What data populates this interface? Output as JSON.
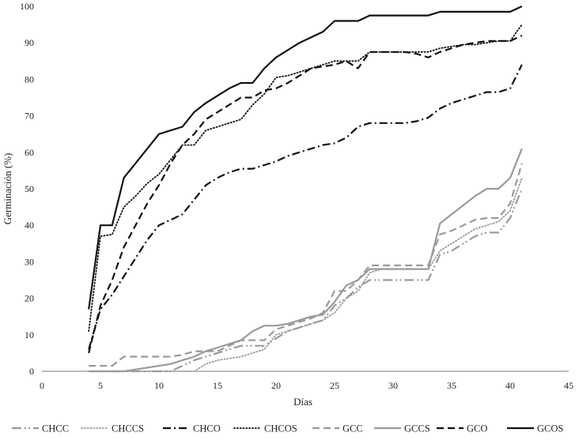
{
  "chart_data": {
    "type": "line",
    "title": "",
    "xlabel": "Días",
    "ylabel": "Germinación (%)",
    "xlim": [
      0,
      45
    ],
    "ylim": [
      0,
      100
    ],
    "xticks": [
      0,
      5,
      10,
      15,
      20,
      25,
      30,
      35,
      40,
      45
    ],
    "yticks": [
      0,
      10,
      20,
      30,
      40,
      50,
      60,
      70,
      80,
      90,
      100
    ],
    "xtick_labels": [
      "0",
      "5",
      "10",
      "15",
      "20",
      "25",
      "30",
      "35",
      "40",
      "45"
    ],
    "ytick_labels": [
      "0",
      "10",
      "20",
      "30",
      "40",
      "50",
      "60",
      "70",
      "80",
      "90",
      "100"
    ],
    "grid": false,
    "legend": "bottom",
    "series": [
      {
        "name": "CHCC",
        "color": "#9a9a9a",
        "style": "dashdotdot",
        "x": [
          4,
          5,
          6,
          7,
          8,
          9,
          10,
          11,
          12,
          13,
          14,
          15,
          16,
          17,
          18,
          19,
          20,
          21,
          22,
          23,
          24,
          25,
          26,
          27,
          28,
          29,
          30,
          31,
          32,
          33,
          34,
          35,
          36,
          37,
          38,
          39,
          40,
          41
        ],
        "y": [
          0,
          0,
          0,
          0,
          0,
          0,
          0,
          0,
          1.5,
          3,
          4,
          5,
          6,
          7,
          7,
          7,
          9,
          11,
          12,
          13,
          14,
          18,
          20,
          23,
          25,
          25,
          25,
          25,
          25,
          25,
          32,
          33,
          35,
          37,
          38,
          38,
          42,
          50
        ]
      },
      {
        "name": "CHCCS",
        "color": "#9a9a9a",
        "style": "dotted",
        "x": [
          4,
          5,
          6,
          7,
          8,
          9,
          10,
          11,
          12,
          13,
          14,
          15,
          16,
          17,
          18,
          19,
          20,
          21,
          22,
          23,
          24,
          25,
          26,
          27,
          28,
          29,
          30,
          31,
          32,
          33,
          34,
          35,
          36,
          37,
          38,
          39,
          40,
          41
        ],
        "y": [
          0,
          0,
          0,
          0,
          0,
          0,
          0,
          0,
          0,
          0,
          2,
          3,
          3.5,
          4,
          5,
          6,
          10,
          11,
          12,
          13,
          14,
          16,
          20,
          22,
          27,
          28,
          28,
          28,
          28,
          28,
          33,
          35,
          37,
          39,
          40,
          41,
          44,
          53
        ]
      },
      {
        "name": "CHCO",
        "color": "#111111",
        "style": "dashdot",
        "x": [
          4,
          5,
          6,
          7,
          8,
          9,
          10,
          11,
          12,
          13,
          14,
          15,
          16,
          17,
          18,
          19,
          20,
          21,
          22,
          23,
          24,
          25,
          26,
          27,
          28,
          29,
          30,
          31,
          32,
          33,
          34,
          35,
          36,
          37,
          38,
          39,
          40,
          41
        ],
        "y": [
          6,
          17,
          21,
          26,
          31,
          36,
          40,
          41.5,
          43,
          47,
          51,
          53,
          54.5,
          55.5,
          55.5,
          56.5,
          57.5,
          59,
          60,
          61,
          62,
          62.5,
          64,
          67,
          68,
          68,
          68,
          68,
          68.5,
          69.5,
          72,
          73.5,
          74.5,
          75.5,
          76.5,
          76.5,
          77.5,
          84
        ]
      },
      {
        "name": "CHCOS",
        "color": "#111111",
        "style": "dotted",
        "x": [
          4,
          5,
          6,
          7,
          8,
          9,
          10,
          11,
          12,
          13,
          14,
          15,
          16,
          17,
          18,
          19,
          20,
          21,
          22,
          23,
          24,
          25,
          26,
          27,
          28,
          29,
          30,
          31,
          32,
          33,
          34,
          35,
          36,
          37,
          38,
          39,
          40,
          41
        ],
        "y": [
          11,
          37,
          37.5,
          45,
          48,
          51.5,
          54,
          58,
          62,
          62,
          66,
          67,
          68,
          69,
          73,
          76,
          80.5,
          81,
          82,
          83,
          84,
          85,
          85,
          85,
          87.5,
          87.5,
          87.5,
          87.5,
          87.5,
          87.5,
          88.5,
          89,
          89.5,
          89.5,
          90,
          90.5,
          90.5,
          95
        ]
      },
      {
        "name": "GCC",
        "color": "#9a9a9a",
        "style": "dashed",
        "x": [
          4,
          5,
          6,
          7,
          8,
          9,
          10,
          11,
          12,
          13,
          14,
          15,
          16,
          17,
          18,
          19,
          20,
          21,
          22,
          23,
          24,
          25,
          26,
          27,
          28,
          29,
          30,
          31,
          32,
          33,
          34,
          35,
          36,
          37,
          38,
          39,
          40,
          41
        ],
        "y": [
          1.5,
          1.5,
          1.5,
          4,
          4,
          4,
          4,
          4,
          4.5,
          5.5,
          5.5,
          5.5,
          7,
          8.5,
          8.5,
          8.5,
          11.5,
          12.5,
          13.5,
          14.5,
          16,
          22,
          22,
          25,
          29,
          29,
          29,
          29,
          29,
          29,
          37.5,
          38.5,
          40,
          41.5,
          42,
          42,
          46,
          57
        ]
      },
      {
        "name": "GCCS",
        "color": "#9a9a9a",
        "style": "solid",
        "x": [
          4,
          5,
          6,
          7,
          8,
          9,
          10,
          11,
          12,
          13,
          14,
          15,
          16,
          17,
          18,
          19,
          20,
          21,
          22,
          23,
          24,
          25,
          26,
          27,
          28,
          29,
          30,
          31,
          32,
          33,
          34,
          35,
          36,
          37,
          38,
          39,
          40,
          41
        ],
        "y": [
          0,
          0,
          0,
          0,
          0.5,
          1,
          1.5,
          2,
          3,
          4,
          5.5,
          6.5,
          7.5,
          8.5,
          11,
          12.5,
          12.5,
          13,
          14,
          15,
          15.5,
          19,
          23.5,
          25,
          28,
          28,
          28,
          28,
          28,
          28,
          40.5,
          43,
          45.5,
          48,
          50,
          50,
          53,
          61
        ]
      },
      {
        "name": "GCO",
        "color": "#111111",
        "style": "dashed",
        "x": [
          4,
          5,
          6,
          7,
          8,
          9,
          10,
          11,
          12,
          13,
          14,
          15,
          16,
          17,
          18,
          19,
          20,
          21,
          22,
          23,
          24,
          25,
          26,
          27,
          28,
          29,
          30,
          31,
          32,
          33,
          34,
          35,
          36,
          37,
          38,
          39,
          40,
          41
        ],
        "y": [
          5,
          18,
          25,
          34,
          40,
          46,
          51,
          57,
          62,
          65,
          69,
          71,
          73,
          75,
          75,
          77,
          77.5,
          79,
          81,
          83,
          83.5,
          84,
          85,
          83,
          87.5,
          87.5,
          87.5,
          87.5,
          87,
          86,
          87.5,
          88.5,
          89.5,
          90,
          90.5,
          90.5,
          90.5,
          92
        ]
      },
      {
        "name": "GCOS",
        "color": "#111111",
        "style": "solid",
        "x": [
          4,
          5,
          6,
          7,
          8,
          9,
          10,
          11,
          12,
          13,
          14,
          15,
          16,
          17,
          18,
          19,
          20,
          21,
          22,
          23,
          24,
          25,
          26,
          27,
          28,
          29,
          30,
          31,
          32,
          33,
          34,
          35,
          36,
          37,
          38,
          39,
          40,
          41
        ],
        "y": [
          17,
          40,
          40,
          53,
          57,
          61,
          65,
          66,
          67,
          71,
          73.5,
          75.5,
          77.5,
          79,
          79,
          83,
          86,
          88,
          90,
          91.5,
          93,
          96,
          96,
          96,
          97.5,
          97.5,
          97.5,
          97.5,
          97.5,
          97.5,
          98.5,
          98.5,
          98.5,
          98.5,
          98.5,
          98.5,
          98.5,
          100
        ]
      }
    ]
  }
}
